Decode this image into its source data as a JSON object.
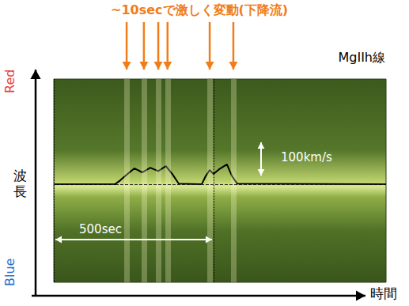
{
  "chart_data": {
    "type": "line",
    "title": "MgIIh線",
    "xlabel": "時間",
    "ylabel": "波長",
    "y_top_label": "Red",
    "y_bottom_label": "Blue",
    "annotation": "~10secで激しく変動(下降流)",
    "event_times": [
      228,
      282,
      327,
      356,
      488,
      562
    ],
    "x": [
      0,
      191,
      208,
      228,
      252,
      277,
      302,
      327,
      351,
      371,
      391,
      463,
      475,
      488,
      500,
      517,
      542,
      557,
      574,
      1040
    ],
    "values": [
      0,
      0,
      12,
      29,
      48,
      36,
      50,
      40,
      55,
      31,
      2,
      0,
      24,
      43,
      31,
      45,
      60,
      26,
      2,
      0
    ],
    "baseline": 0,
    "reference_times": [
      0,
      500
    ],
    "scale_bars": [
      {
        "label": "100km/s",
        "value": 100,
        "direction": "vertical"
      },
      {
        "label": "500sec",
        "value": 500,
        "direction": "horizontal"
      }
    ],
    "xlim": [
      0,
      1040
    ],
    "ylim": [
      -295,
      317
    ],
    "xticks": [],
    "yticks": [],
    "tick_labels": false,
    "color": "#000000",
    "line_style": "solid"
  }
}
